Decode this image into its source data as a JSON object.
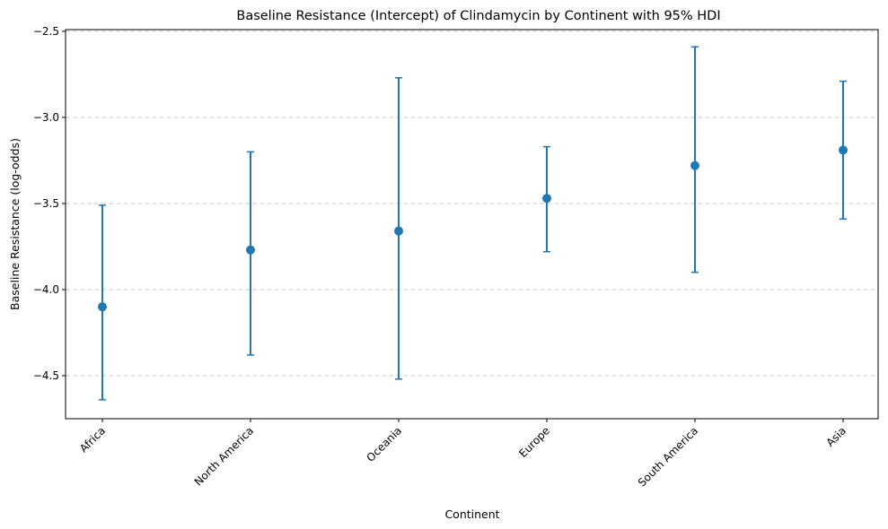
{
  "chart_data": {
    "type": "scatter",
    "title": "Baseline Resistance (Intercept) of Clindamycin by Continent with 95% HDI",
    "xlabel": "Continent",
    "ylabel": "Baseline Resistance (log-odds)",
    "categories": [
      "Africa",
      "North America",
      "Oceania",
      "Europe",
      "South America",
      "Asia"
    ],
    "series": [
      {
        "values": [
          -4.1,
          -3.77,
          -3.66,
          -3.47,
          -3.28,
          -3.19
        ],
        "hdi_low": [
          -4.64,
          -4.38,
          -4.52,
          -3.78,
          -3.9,
          -3.59
        ],
        "hdi_high": [
          -3.51,
          -3.2,
          -2.77,
          -3.17,
          -2.59,
          -2.79
        ]
      }
    ],
    "ylim": [
      -4.75,
      -2.49
    ],
    "yticks": [
      -2.5,
      -3.0,
      -3.5,
      -4.0,
      -4.5
    ],
    "ytick_labels": [
      "−2.5",
      "−3.0",
      "−3.5",
      "−4.0",
      "−4.5"
    ],
    "grid": "y-dashed",
    "colors": {
      "series": "#1f77b4",
      "grid": "#c8c8c8",
      "axes": "#000000"
    }
  }
}
